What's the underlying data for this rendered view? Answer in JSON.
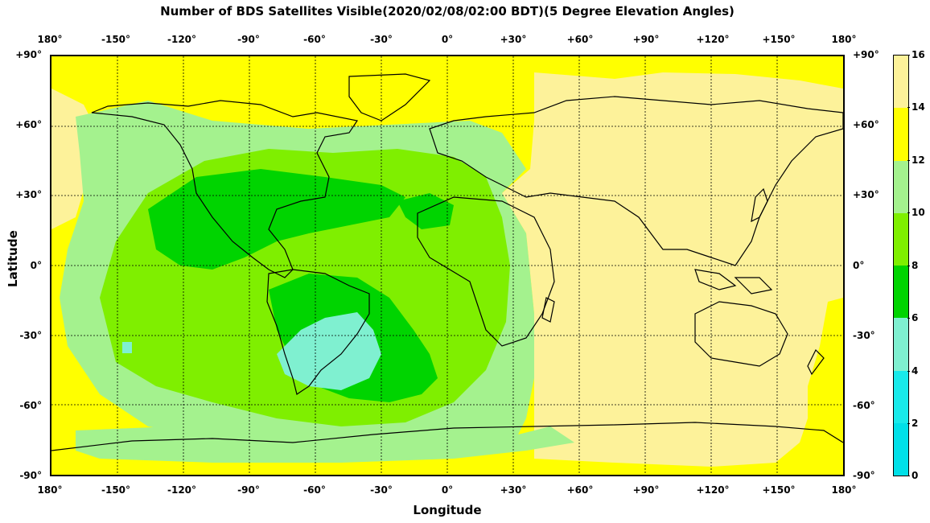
{
  "title": "Number of BDS Satellites Visible(2020/02/08/02:00 BDT)(5 Degree Elevation Angles)",
  "x_axis": {
    "label": "Longitude",
    "ticks": [
      "180°",
      "-150°",
      "-120°",
      "-90°",
      "-60°",
      "-30°",
      "0°",
      "+30°",
      "+60°",
      "+90°",
      "+120°",
      "+150°",
      "180°"
    ]
  },
  "y_axis": {
    "label": "Latitude",
    "ticks": [
      "+90°",
      "+60°",
      "+30°",
      "0°",
      "-30°",
      "-60°",
      "-90°"
    ]
  },
  "colorbar": {
    "ticks": [
      "16",
      "14",
      "12",
      "10",
      "8",
      "6",
      "4",
      "2",
      "0"
    ],
    "colors": [
      "#fdf29a",
      "#ffff00",
      "#a4f28e",
      "#7fef00",
      "#00d400",
      "#7ff0d0",
      "#18eaea",
      "#00e0e8"
    ]
  },
  "map": {
    "grid": true,
    "lon_range": [
      -180,
      180
    ],
    "lat_range": [
      -90,
      90
    ],
    "region_colors": {
      "15": "#fdf29a",
      "13": "#ffff00",
      "11": "#a4f28e",
      "9": "#7fef00",
      "7": "#00d400",
      "5": "#7ff0d0"
    }
  }
}
